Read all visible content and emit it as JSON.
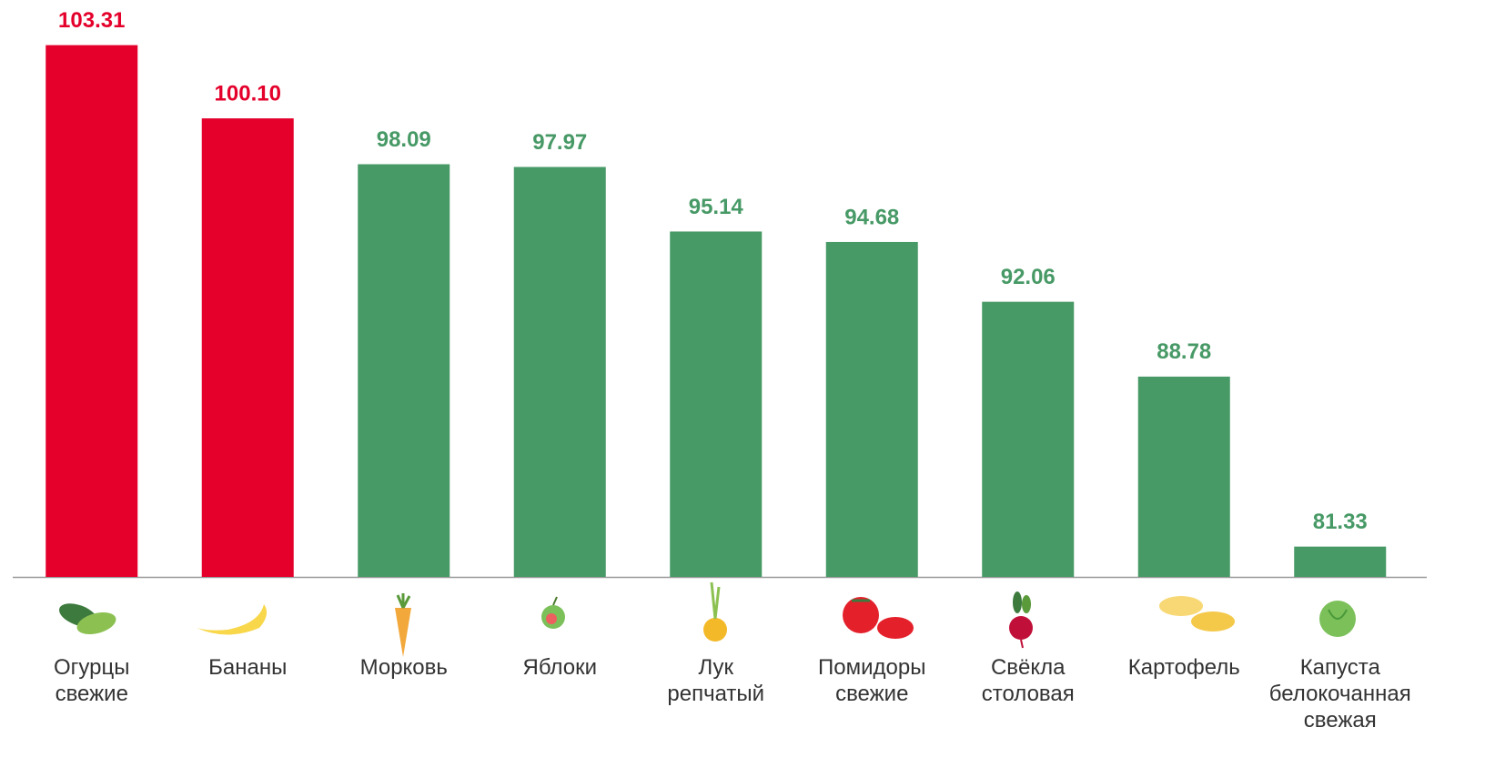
{
  "chart_data": {
    "type": "bar",
    "categories": [
      "Огурцы свежие",
      "Бананы",
      "Морковь",
      "Яблоки",
      "Лук репчатый",
      "Помидоры свежие",
      "Свёкла столовая",
      "Картофель",
      "Капуста белокочанная свежая"
    ],
    "values": [
      103.31,
      100.1,
      98.09,
      97.97,
      95.14,
      94.68,
      92.06,
      88.78,
      81.33
    ],
    "value_labels": [
      "103.31",
      "100.10",
      "98.09",
      "97.97",
      "95.14",
      "94.68",
      "92.06",
      "88.78",
      "81.33"
    ],
    "colors": [
      "#e4002b",
      "#e4002b",
      "#479966",
      "#479966",
      "#479966",
      "#479966",
      "#479966",
      "#479966",
      "#479966"
    ],
    "ylim": [
      80,
      104
    ]
  }
}
